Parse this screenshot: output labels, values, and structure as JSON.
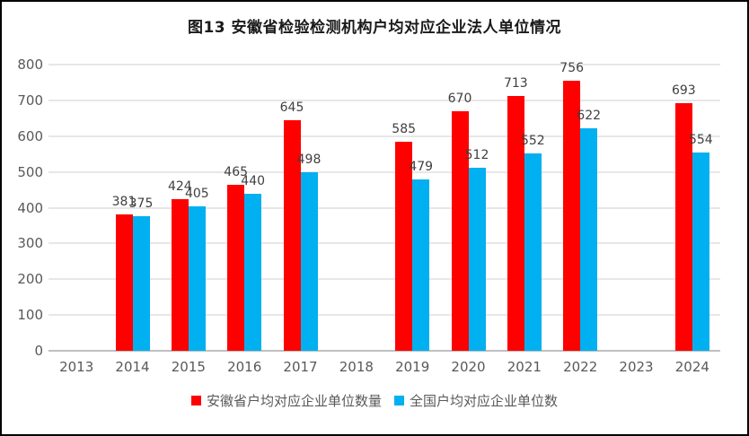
{
  "chart_data": {
    "type": "bar",
    "title": "图13  安徽省检验检测机构户均对应企业法人单位情况",
    "categories": [
      "2013",
      "2014",
      "2015",
      "2016",
      "2017",
      "2018",
      "2019",
      "2020",
      "2021",
      "2022",
      "2023",
      "2024"
    ],
    "series": [
      {
        "name": "安徽省户均对应企业单位数量",
        "color": "#FF0000",
        "values": [
          null,
          381,
          424,
          465,
          645,
          null,
          585,
          670,
          713,
          756,
          null,
          693
        ]
      },
      {
        "name": "全国户均对应企业单位数",
        "color": "#00B0F0",
        "values": [
          null,
          375,
          405,
          440,
          498,
          null,
          479,
          512,
          552,
          622,
          null,
          554
        ]
      }
    ],
    "ylim": [
      0,
      800
    ],
    "ytick_step": 100,
    "ytick_labels": [
      "0",
      "100",
      "200",
      "300",
      "400",
      "500",
      "600",
      "700",
      "800"
    ],
    "grid": "horizontal",
    "legend_position": "bottom",
    "colors": {
      "axis_text": "#595959",
      "data_label_text": "#404040",
      "gridline": "#E7E7E7",
      "axis_line": "#BFBFBF",
      "frame_border": "#000000",
      "background": "#FFFFFF"
    }
  }
}
